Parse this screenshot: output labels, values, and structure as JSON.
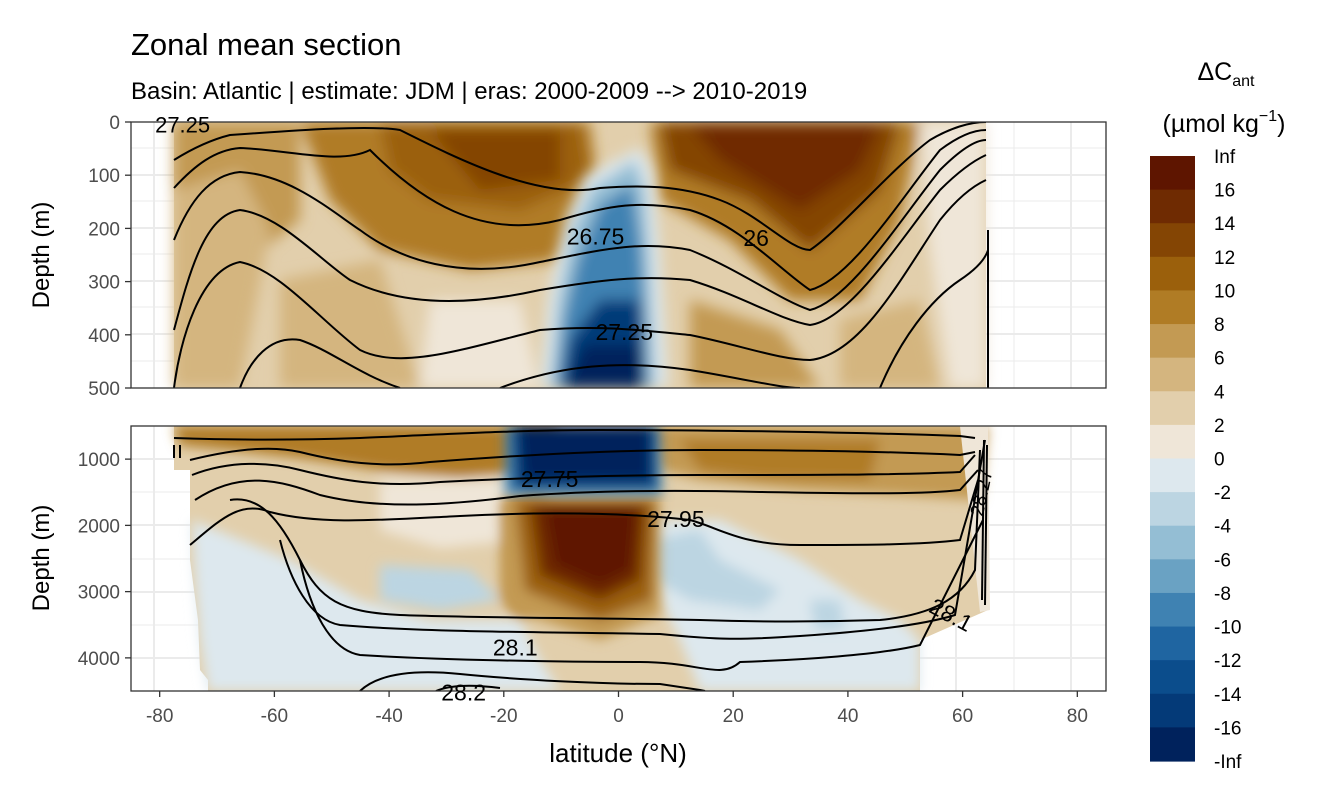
{
  "chart_data": {
    "type": "heatmap",
    "title": "Zonal mean section",
    "subtitle": "Basin: Atlantic | estimate: JDM  | eras: 2000-2009 --> 2010-2019",
    "xlabel": "latitude (°N)",
    "ylabel": "Depth (m)",
    "xlim": [
      -85,
      85
    ],
    "x_ticks": [
      -80,
      -60,
      -40,
      -20,
      0,
      20,
      40,
      60,
      80
    ],
    "x_tick_labels": [
      "-80",
      "-60",
      "-40",
      "-20",
      "0",
      "20",
      "40",
      "60",
      "80"
    ],
    "panels": [
      {
        "name": "upper",
        "ylim": [
          500,
          0
        ],
        "y_ticks": [
          0,
          100,
          200,
          300,
          400,
          500
        ],
        "y_tick_labels": [
          "0",
          "100",
          "200",
          "300",
          "400",
          "500"
        ]
      },
      {
        "name": "lower",
        "ylim": [
          4500,
          500
        ],
        "y_ticks": [
          1000,
          2000,
          3000,
          4000
        ],
        "y_tick_labels": [
          "1000",
          "2000",
          "3000",
          "4000"
        ]
      }
    ],
    "legend": {
      "title_main": "ΔC",
      "title_sub": "ant",
      "unit_pre": "(µmol kg",
      "unit_sup": "−1",
      "unit_post": ")",
      "position": "right",
      "labels": [
        "Inf",
        "16",
        "14",
        "12",
        "10",
        "8",
        "6",
        "4",
        "2",
        "0",
        "-2",
        "-4",
        "-6",
        "-8",
        "-10",
        "-12",
        "-14",
        "-16",
        "-Inf"
      ],
      "colors": [
        "#5e1500",
        "#6f2b02",
        "#844504",
        "#9b600c",
        "#b07c25",
        "#c39a53",
        "#d4b57f",
        "#e2cfac",
        "#efe6d8",
        "#dde8ee",
        "#bcd5e2",
        "#94bed4",
        "#6aa2c3",
        "#3f82b2",
        "#1f65a1",
        "#0b4d8c",
        "#043a78",
        "#00225c"
      ]
    },
    "contour_labels": [
      {
        "text": "27.25",
        "x": -76,
        "depth": 5,
        "panel": "upper"
      },
      {
        "text": "26.75",
        "x": -4,
        "depth": 215,
        "panel": "upper"
      },
      {
        "text": "26",
        "x": 24,
        "depth": 218,
        "panel": "upper"
      },
      {
        "text": "27.25",
        "x": 1,
        "depth": 395,
        "panel": "upper"
      },
      {
        "text": "27.75",
        "x": -12,
        "depth": 1300,
        "panel": "lower"
      },
      {
        "text": "27.95",
        "x": 10,
        "depth": 1900,
        "panel": "lower"
      },
      {
        "text": "28.1",
        "x": -18,
        "depth": 3840,
        "panel": "lower"
      },
      {
        "text": "28.1",
        "x": 58,
        "depth": 3350,
        "panel": "lower"
      },
      {
        "text": "28.2",
        "x": -27,
        "depth": 4520,
        "panel": "lower"
      },
      {
        "text": "28.27",
        "x": 63,
        "depth": 1500,
        "panel": "lower"
      }
    ]
  }
}
